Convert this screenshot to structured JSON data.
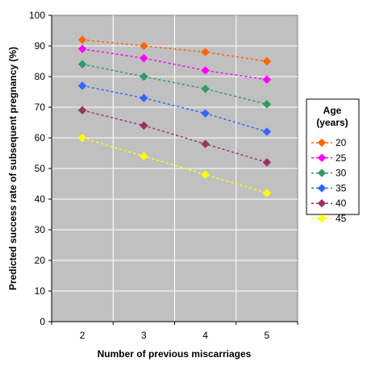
{
  "chart_data": {
    "type": "line",
    "xlabel": "Number of previous miscarriages",
    "ylabel": "Predicted success rate of subsequent pregnancy (%)",
    "categories": [
      "2",
      "3",
      "4",
      "5"
    ],
    "ylim": [
      0,
      100
    ],
    "yticks": [
      0,
      10,
      20,
      30,
      40,
      50,
      60,
      70,
      80,
      90,
      100
    ],
    "grid": true,
    "legend": {
      "title_line1": "Age",
      "title_line2": "(years)",
      "placement": "right"
    },
    "series": [
      {
        "name": "20",
        "color": "#FF6600",
        "values": [
          92,
          90,
          88,
          85
        ]
      },
      {
        "name": "25",
        "color": "#FF00FF",
        "values": [
          89,
          86,
          82,
          79
        ]
      },
      {
        "name": "30",
        "color": "#339966",
        "values": [
          84,
          80,
          76,
          71
        ]
      },
      {
        "name": "35",
        "color": "#3366FF",
        "values": [
          77,
          73,
          68,
          62
        ]
      },
      {
        "name": "40",
        "color": "#993366",
        "values": [
          69,
          64,
          58,
          52
        ]
      },
      {
        "name": "45",
        "color": "#FFFF00",
        "values": [
          60,
          54,
          48,
          42
        ]
      }
    ]
  }
}
